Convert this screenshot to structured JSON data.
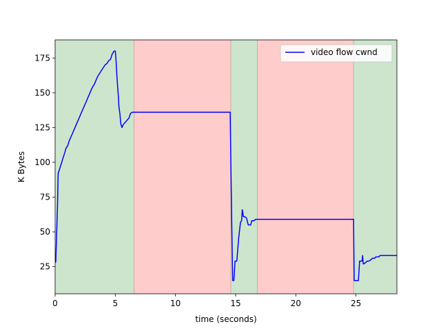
{
  "chart_data": {
    "type": "line",
    "title": "",
    "xlabel": "time (seconds)",
    "ylabel": "K Bytes",
    "xlim": [
      0,
      28.4
    ],
    "ylim": [
      5.5,
      188
    ],
    "xticks": [
      0,
      5,
      10,
      15,
      20,
      25
    ],
    "yticks": [
      25,
      50,
      75,
      100,
      125,
      150,
      175
    ],
    "grid": false,
    "legend_position": "top-right",
    "background_bands": [
      {
        "start": 0,
        "end": 6.55,
        "color": "#cde5cd"
      },
      {
        "start": 6.55,
        "end": 14.6,
        "color": "#ffcccc"
      },
      {
        "start": 14.6,
        "end": 16.8,
        "color": "#cde5cd"
      },
      {
        "start": 16.8,
        "end": 24.8,
        "color": "#ffcccc"
      },
      {
        "start": 24.8,
        "end": 28.4,
        "color": "#cde5cd"
      }
    ],
    "band_edge_color": "#c0b49c",
    "series": [
      {
        "name": "video flow cwnd",
        "color": "#0000ff",
        "x": [
          0.05,
          0.2,
          0.25,
          0.4,
          0.55,
          0.65,
          0.8,
          0.9,
          1.05,
          1.15,
          1.3,
          1.4,
          1.55,
          1.65,
          1.8,
          1.95,
          2.05,
          2.2,
          2.35,
          2.5,
          2.65,
          2.8,
          2.95,
          3.1,
          3.25,
          3.4,
          3.55,
          3.7,
          3.85,
          4.0,
          4.15,
          4.3,
          4.45,
          4.6,
          4.75,
          4.9,
          5.0,
          5.05,
          5.15,
          5.25,
          5.3,
          5.38,
          5.45,
          5.55,
          5.65,
          5.75,
          5.85,
          5.95,
          6.05,
          6.15,
          6.25,
          6.4,
          14.55,
          14.6,
          14.75,
          14.85,
          14.95,
          15.1,
          15.25,
          15.4,
          15.5,
          15.55,
          15.65,
          15.75,
          15.9,
          16.05,
          16.25,
          16.35,
          16.55,
          16.65,
          24.8,
          24.85,
          25.2,
          25.3,
          25.5,
          25.55,
          25.6,
          25.65,
          25.95,
          26.05,
          26.25,
          26.35,
          26.55,
          26.65,
          26.9,
          27.0,
          28.4
        ],
        "y": [
          28,
          70,
          92,
          96,
          100,
          103,
          107,
          110,
          112,
          115,
          118,
          120,
          123,
          125,
          128,
          131,
          133,
          136,
          139,
          142,
          145,
          148,
          151,
          154,
          156,
          159,
          162,
          164,
          166,
          168,
          170,
          171,
          173,
          174,
          178,
          180,
          180,
          175,
          160,
          148,
          140,
          135,
          128,
          125,
          127,
          128,
          129,
          130,
          131,
          132,
          135,
          136,
          136,
          100,
          15,
          15,
          29,
          29,
          45,
          57,
          58,
          66,
          61,
          61,
          60,
          55,
          55,
          58,
          58,
          59,
          59,
          15,
          15,
          29,
          29,
          33,
          27,
          27,
          29,
          29,
          30,
          31,
          31,
          32,
          32,
          33,
          33
        ]
      }
    ]
  }
}
